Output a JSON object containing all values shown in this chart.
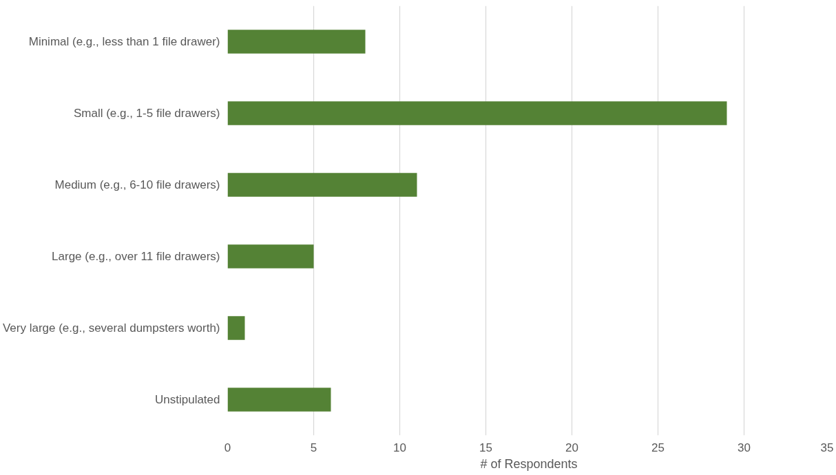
{
  "chart_data": {
    "type": "bar",
    "orientation": "horizontal",
    "xlabel": "# of Respondents",
    "categories": [
      "Minimal (e.g., less than 1 file drawer)",
      "Small (e.g., 1-5 file drawers)",
      "Medium (e.g., 6-10 file drawers)",
      "Large (e.g., over 11 file drawers)",
      "Very large (e.g., several dumpsters worth)",
      "Unstipulated"
    ],
    "values": [
      8,
      29,
      11,
      5,
      1,
      6
    ],
    "color": "#548235",
    "xlim": [
      0,
      35
    ],
    "xticks": [
      0,
      5,
      10,
      15,
      20,
      25,
      30,
      35
    ],
    "grid": "x"
  }
}
